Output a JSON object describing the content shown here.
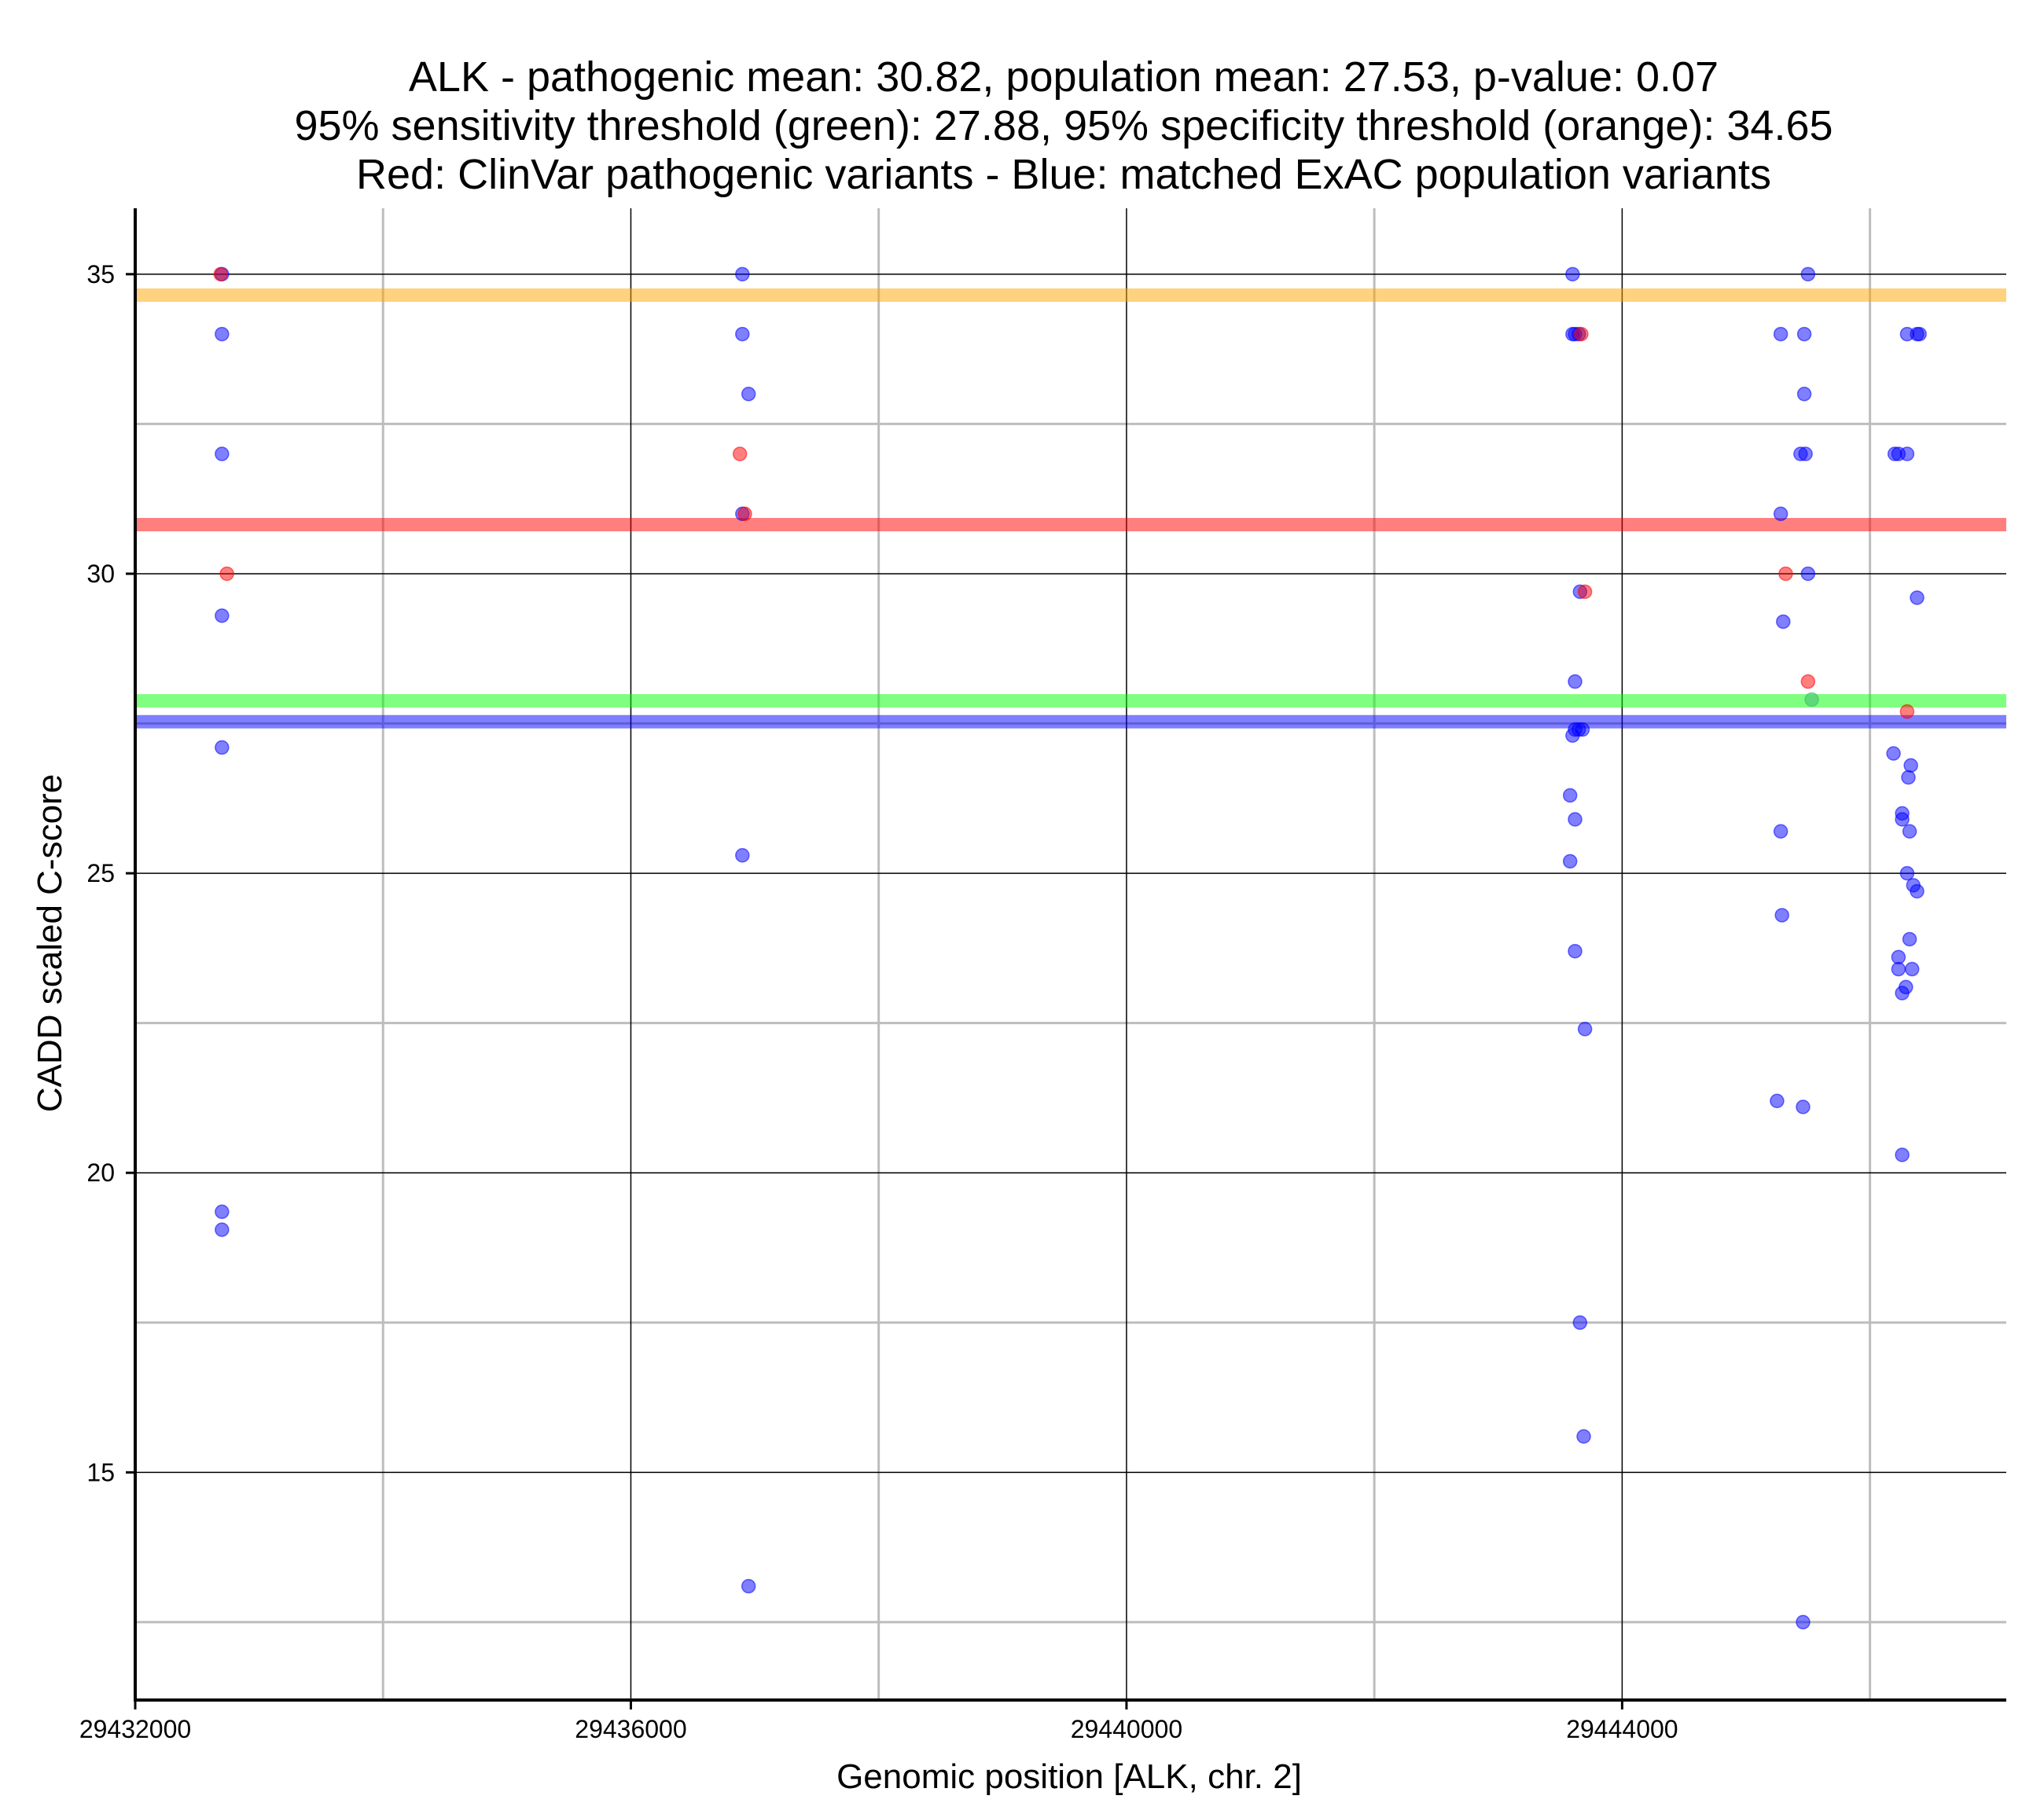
{
  "chart_data": {
    "type": "scatter",
    "title_lines": [
      "ALK - pathogenic mean: 30.82, population mean: 27.53, p-value: 0.07",
      "95% sensitivity threshold (green): 27.88, 95% specificity threshold (orange): 34.65",
      "Red: ClinVar pathogenic variants - Blue: matched ExAC population variants"
    ],
    "xlabel": "Genomic position [ALK, chr. 2]",
    "ylabel": "CADD scaled C-score",
    "xlim": [
      29432000,
      29447100
    ],
    "ylim": [
      11.2,
      36.1
    ],
    "x_ticks": [
      29432000,
      29436000,
      29440000,
      29444000
    ],
    "x_tick_labels": [
      "29432000",
      "29436000",
      "29440000",
      "29444000"
    ],
    "x_minor_gridlines": [
      29434000,
      29438000,
      29442000,
      29446000
    ],
    "y_ticks": [
      15,
      20,
      25,
      30,
      35
    ],
    "y_tick_labels": [
      "15",
      "20",
      "25",
      "30",
      "35"
    ],
    "y_minor_gridlines": [
      12.5,
      17.5,
      22.5,
      27.5,
      32.5
    ],
    "grid": true,
    "colors": {
      "pathogenic": "#ff0000",
      "population": "#0000ff",
      "sensitivity": "#00ff00",
      "specificity": "#ffa500",
      "major_grid": "#000000",
      "minor_grid": "#bdbdbd"
    },
    "reference_lines": [
      {
        "role": "specificity",
        "y": 34.65,
        "color": "#ffa500"
      },
      {
        "role": "pathogenic-mean",
        "y": 30.82,
        "color": "#ff0000"
      },
      {
        "role": "sensitivity",
        "y": 27.88,
        "color": "#00ff00"
      },
      {
        "role": "population-mean",
        "y": 27.53,
        "color": "#0000ff"
      }
    ],
    "series": [
      {
        "role": "population",
        "color": "#0000ff",
        "points": [
          [
            29432700,
            35.0
          ],
          [
            29432700,
            34.0
          ],
          [
            29432700,
            32.0
          ],
          [
            29432700,
            29.3
          ],
          [
            29432700,
            27.1
          ],
          [
            29432700,
            19.35
          ],
          [
            29432700,
            19.05
          ],
          [
            29436900,
            35.0
          ],
          [
            29436900,
            34.0
          ],
          [
            29436950,
            33.0
          ],
          [
            29436900,
            31.0
          ],
          [
            29436900,
            25.3
          ],
          [
            29436950,
            13.1
          ],
          [
            29443600,
            35.0
          ],
          [
            29443600,
            34.0
          ],
          [
            29443620,
            34.0
          ],
          [
            29443650,
            34.0
          ],
          [
            29443660,
            29.7
          ],
          [
            29443620,
            28.2
          ],
          [
            29443620,
            27.4
          ],
          [
            29443650,
            27.4
          ],
          [
            29443680,
            27.4
          ],
          [
            29443600,
            27.3
          ],
          [
            29443580,
            26.3
          ],
          [
            29443620,
            25.9
          ],
          [
            29443580,
            25.2
          ],
          [
            29443620,
            23.7
          ],
          [
            29443700,
            22.4
          ],
          [
            29443660,
            17.5
          ],
          [
            29443690,
            15.6
          ],
          [
            29445500,
            35.0
          ],
          [
            29445280,
            34.0
          ],
          [
            29445470,
            34.0
          ],
          [
            29445470,
            33.0
          ],
          [
            29445440,
            32.0
          ],
          [
            29445480,
            32.0
          ],
          [
            29445280,
            31.0
          ],
          [
            29445500,
            30.0
          ],
          [
            29445300,
            29.2
          ],
          [
            29445280,
            25.7
          ],
          [
            29445290,
            24.3
          ],
          [
            29445250,
            21.2
          ],
          [
            29445460,
            21.1
          ],
          [
            29445460,
            12.5
          ],
          [
            29446300,
            34.0
          ],
          [
            29446380,
            34.0
          ],
          [
            29446400,
            34.0
          ],
          [
            29446200,
            32.0
          ],
          [
            29446230,
            32.0
          ],
          [
            29446300,
            32.0
          ],
          [
            29446380,
            29.6
          ],
          [
            29446190,
            27.0
          ],
          [
            29446330,
            26.8
          ],
          [
            29446310,
            26.6
          ],
          [
            29446260,
            26.0
          ],
          [
            29446260,
            25.9
          ],
          [
            29446320,
            25.7
          ],
          [
            29446300,
            25.0
          ],
          [
            29446350,
            24.8
          ],
          [
            29446380,
            24.7
          ],
          [
            29446320,
            23.9
          ],
          [
            29446230,
            23.6
          ],
          [
            29446230,
            23.4
          ],
          [
            29446340,
            23.4
          ],
          [
            29446290,
            23.1
          ],
          [
            29446260,
            23.0
          ],
          [
            29446260,
            20.3
          ]
        ]
      },
      {
        "role": "pathogenic",
        "color": "#ff0000",
        "points": [
          [
            29432690,
            35.0
          ],
          [
            29432740,
            30.0
          ],
          [
            29436880,
            32.0
          ],
          [
            29436920,
            31.0
          ],
          [
            29443670,
            34.0
          ],
          [
            29443700,
            29.7
          ],
          [
            29445320,
            30.0
          ],
          [
            29445500,
            28.2
          ],
          [
            29446300,
            27.7
          ]
        ]
      },
      {
        "role": "threshold-marker",
        "color": "#3cb371",
        "points": [
          [
            29445530,
            27.9
          ]
        ]
      }
    ]
  }
}
